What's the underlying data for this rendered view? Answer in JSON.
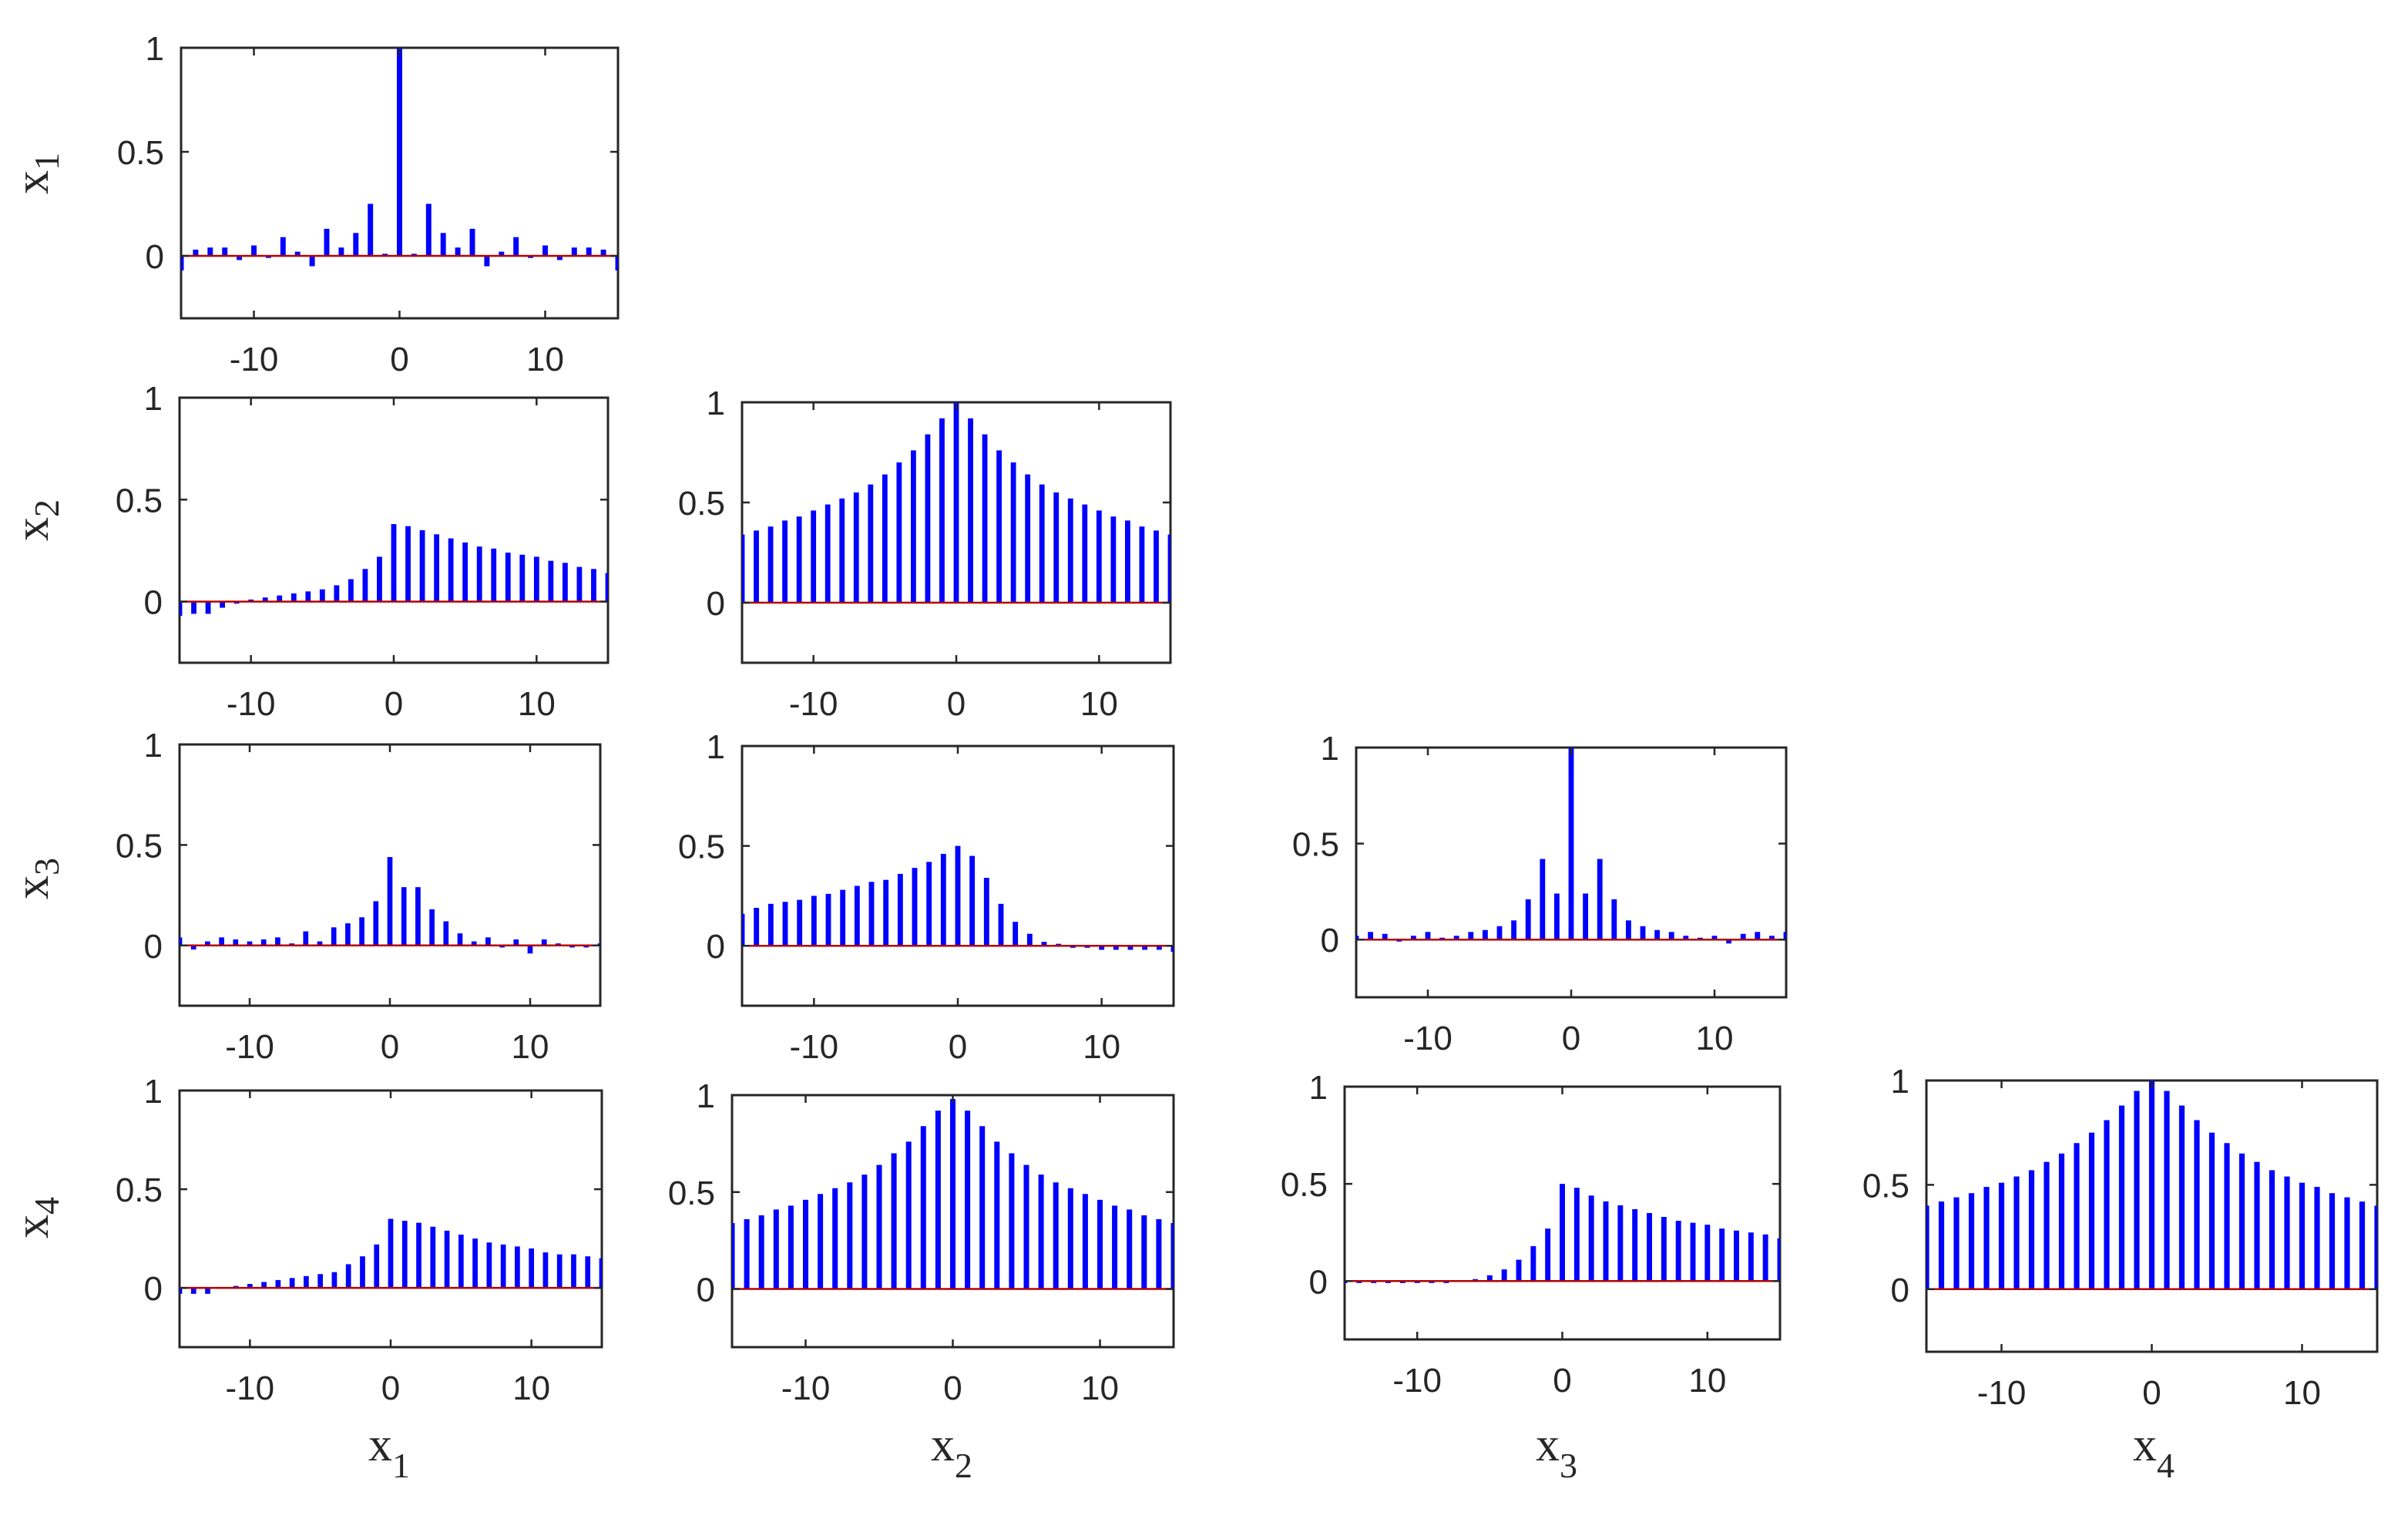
{
  "colors": {
    "bar": "#0000ff",
    "baseline": "#b40000",
    "axis": "#262626",
    "background": "#ffffff"
  },
  "chart_data": {
    "type": "bar",
    "description_axes": "lower-triangular matrix of correlation bar plots, lag from -15 to 15",
    "x_ticks": [
      "-10",
      "0",
      "10"
    ],
    "y_ticks": [
      "0",
      "0.5",
      "1"
    ],
    "xlim": [
      -15,
      15
    ],
    "ylim": [
      -0.3,
      1
    ],
    "lags": [
      -15,
      -14,
      -13,
      -12,
      -11,
      -10,
      -9,
      -8,
      -7,
      -6,
      -5,
      -4,
      -3,
      -2,
      -1,
      0,
      1,
      2,
      3,
      4,
      5,
      6,
      7,
      8,
      9,
      10,
      11,
      12,
      13,
      14,
      15
    ],
    "row_labels": [
      {
        "base": "x",
        "sub": "1"
      },
      {
        "base": "x",
        "sub": "2"
      },
      {
        "base": "x",
        "sub": "3"
      },
      {
        "base": "x",
        "sub": "4"
      }
    ],
    "col_labels": [
      {
        "base": "x",
        "sub": "1"
      },
      {
        "base": "x",
        "sub": "2"
      },
      {
        "base": "x",
        "sub": "3"
      },
      {
        "base": "x",
        "sub": "4"
      }
    ],
    "panels": [
      {
        "row": 1,
        "col": 1,
        "values": [
          -0.07,
          0.03,
          0.04,
          0.04,
          -0.02,
          0.05,
          -0.01,
          0.09,
          0.02,
          -0.05,
          0.13,
          0.04,
          0.11,
          0.25,
          0.01,
          1.0,
          0.01,
          0.25,
          0.11,
          0.04,
          0.13,
          -0.05,
          0.02,
          0.09,
          -0.01,
          0.05,
          -0.02,
          0.04,
          0.04,
          0.03,
          -0.07
        ]
      },
      {
        "row": 2,
        "col": 1,
        "values": [
          -0.07,
          -0.06,
          -0.06,
          -0.03,
          -0.01,
          0.01,
          0.02,
          0.03,
          0.04,
          0.05,
          0.06,
          0.08,
          0.11,
          0.16,
          0.22,
          0.38,
          0.37,
          0.35,
          0.33,
          0.31,
          0.29,
          0.27,
          0.26,
          0.24,
          0.23,
          0.22,
          0.2,
          0.19,
          0.17,
          0.16,
          0.14
        ]
      },
      {
        "row": 2,
        "col": 2,
        "values": [
          0.34,
          0.36,
          0.38,
          0.41,
          0.43,
          0.46,
          0.49,
          0.52,
          0.55,
          0.59,
          0.64,
          0.7,
          0.76,
          0.84,
          0.92,
          1.0,
          0.92,
          0.84,
          0.76,
          0.7,
          0.64,
          0.59,
          0.55,
          0.52,
          0.49,
          0.46,
          0.43,
          0.41,
          0.38,
          0.36,
          0.34
        ]
      },
      {
        "row": 3,
        "col": 1,
        "values": [
          0.04,
          -0.02,
          0.02,
          0.04,
          0.03,
          0.02,
          0.03,
          0.04,
          0.01,
          0.07,
          0.02,
          0.09,
          0.11,
          0.14,
          0.22,
          0.44,
          0.29,
          0.29,
          0.18,
          0.12,
          0.06,
          0.02,
          0.04,
          -0.01,
          0.03,
          -0.04,
          0.03,
          0.01,
          -0.01,
          -0.01,
          0.01
        ]
      },
      {
        "row": 3,
        "col": 2,
        "values": [
          0.16,
          0.19,
          0.21,
          0.22,
          0.23,
          0.25,
          0.26,
          0.28,
          0.3,
          0.32,
          0.33,
          0.36,
          0.39,
          0.42,
          0.46,
          0.5,
          0.45,
          0.34,
          0.21,
          0.12,
          0.06,
          0.02,
          0.01,
          -0.01,
          -0.01,
          -0.02,
          -0.02,
          -0.02,
          -0.02,
          -0.02,
          -0.03
        ]
      },
      {
        "row": 3,
        "col": 3,
        "values": [
          0.02,
          0.04,
          0.03,
          -0.01,
          0.02,
          0.04,
          0.01,
          0.02,
          0.04,
          0.05,
          0.07,
          0.1,
          0.21,
          0.42,
          0.24,
          1.0,
          0.24,
          0.42,
          0.21,
          0.1,
          0.07,
          0.05,
          0.04,
          0.02,
          0.01,
          0.02,
          -0.02,
          0.03,
          0.04,
          0.02,
          0.04
        ]
      },
      {
        "row": 4,
        "col": 1,
        "values": [
          -0.03,
          -0.03,
          -0.03,
          0.0,
          0.01,
          0.02,
          0.03,
          0.04,
          0.05,
          0.06,
          0.07,
          0.08,
          0.12,
          0.16,
          0.22,
          0.35,
          0.34,
          0.33,
          0.31,
          0.29,
          0.27,
          0.25,
          0.23,
          0.22,
          0.21,
          0.2,
          0.18,
          0.17,
          0.17,
          0.16,
          0.15
        ]
      },
      {
        "row": 4,
        "col": 2,
        "values": [
          0.34,
          0.36,
          0.38,
          0.41,
          0.43,
          0.46,
          0.49,
          0.52,
          0.55,
          0.59,
          0.64,
          0.7,
          0.76,
          0.84,
          0.92,
          0.98,
          0.92,
          0.84,
          0.76,
          0.7,
          0.64,
          0.59,
          0.55,
          0.52,
          0.49,
          0.46,
          0.43,
          0.41,
          0.38,
          0.36,
          0.34
        ]
      },
      {
        "row": 4,
        "col": 3,
        "values": [
          -0.01,
          -0.01,
          -0.01,
          -0.01,
          -0.01,
          -0.01,
          -0.01,
          -0.01,
          0.0,
          0.01,
          0.03,
          0.06,
          0.11,
          0.18,
          0.27,
          0.5,
          0.48,
          0.44,
          0.41,
          0.39,
          0.37,
          0.35,
          0.33,
          0.31,
          0.3,
          0.29,
          0.27,
          0.26,
          0.25,
          0.24,
          0.22
        ]
      },
      {
        "row": 4,
        "col": 4,
        "values": [
          0.4,
          0.42,
          0.44,
          0.46,
          0.49,
          0.51,
          0.54,
          0.57,
          0.61,
          0.65,
          0.7,
          0.75,
          0.81,
          0.88,
          0.95,
          1.0,
          0.95,
          0.88,
          0.81,
          0.75,
          0.7,
          0.65,
          0.61,
          0.57,
          0.54,
          0.51,
          0.49,
          0.46,
          0.44,
          0.42,
          0.4
        ]
      }
    ]
  }
}
